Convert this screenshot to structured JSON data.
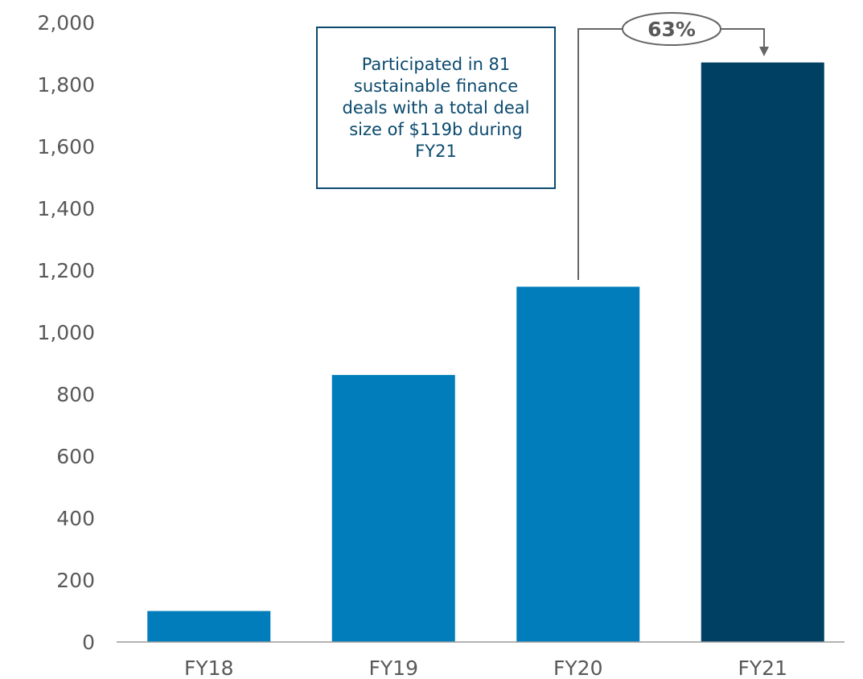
{
  "chart_data": {
    "type": "bar",
    "categories": [
      "FY18",
      "FY19",
      "FY20",
      "FY21"
    ],
    "values": [
      100,
      862,
      1147,
      1871
    ],
    "ylim": [
      0,
      2000
    ],
    "yticks": [
      0,
      200,
      400,
      600,
      800,
      1000,
      1200,
      1400,
      1600,
      1800,
      2000
    ],
    "ytick_labels": [
      "0",
      "200",
      "400",
      "600",
      "800",
      "1,000",
      "1,200",
      "1,400",
      "1,600",
      "1,800",
      "2,000"
    ],
    "bar_colors": [
      "#007dba",
      "#007dba",
      "#007dba",
      "#004163"
    ],
    "grid": false,
    "growth_annotation": {
      "label": "63%",
      "from": "FY20",
      "to": "FY21"
    },
    "note": "Participated in 81 sustainable finance deals with a total deal size of $119b during FY21"
  }
}
